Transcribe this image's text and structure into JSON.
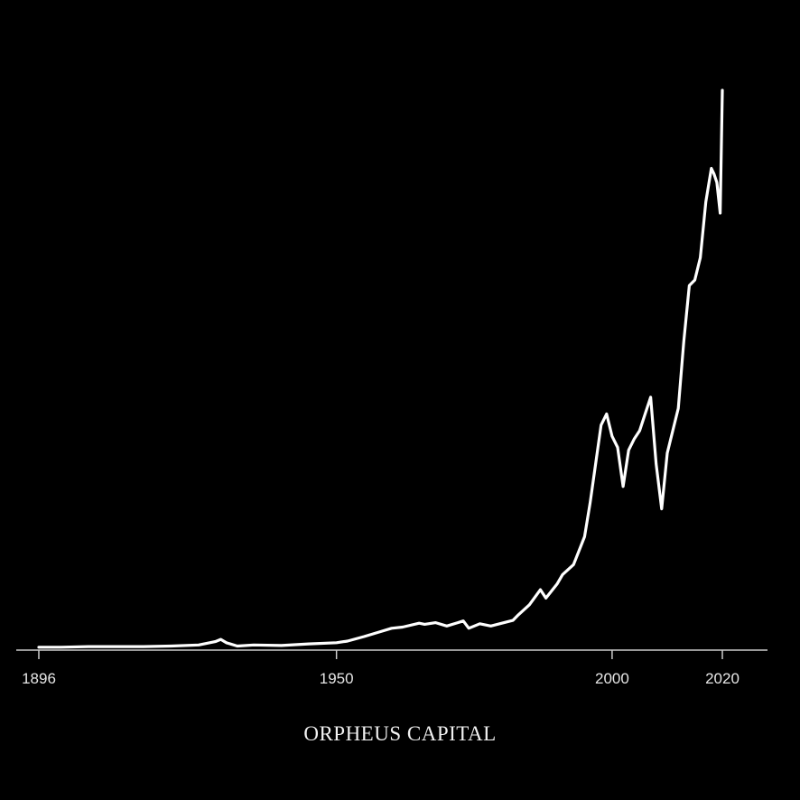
{
  "brand": {
    "name": "ORPHEUS CAPITAL"
  },
  "colors": {
    "background": "#000000",
    "line": "#ffffff",
    "axis": "#cccccc",
    "text": "#e6e6e6"
  },
  "chart_data": {
    "type": "line",
    "title": "",
    "xlabel": "",
    "ylabel": "",
    "xlim": [
      1896,
      2028
    ],
    "ylim": [
      0,
      100
    ],
    "grid": false,
    "y_axis_shown": false,
    "x_ticks": [
      {
        "value": 1896,
        "label": "1896"
      },
      {
        "value": 1950,
        "label": "1950"
      },
      {
        "value": 2000,
        "label": "2000"
      },
      {
        "value": 2020,
        "label": "2020"
      }
    ],
    "series": [
      {
        "x": [
          1896,
          1900,
          1905,
          1910,
          1915,
          1920,
          1925,
          1928,
          1929,
          1930,
          1932,
          1935,
          1940,
          1945,
          1950,
          1952,
          1955,
          1958,
          1960,
          1962,
          1965,
          1966,
          1968,
          1970,
          1972,
          1973,
          1974,
          1976,
          1978,
          1980,
          1982,
          1983,
          1985,
          1987,
          1988,
          1990,
          1991,
          1993,
          1995,
          1996,
          1997,
          1998,
          1999,
          2000,
          2001,
          2002,
          2003,
          2004,
          2005,
          2006,
          2007,
          2008,
          2009,
          2010,
          2011,
          2012,
          2013,
          2014,
          2015,
          2016,
          2017,
          2018,
          2018.5,
          2019,
          2019.6,
          2020
        ],
        "y": [
          0.2,
          0.2,
          0.3,
          0.3,
          0.3,
          0.4,
          0.6,
          1.2,
          1.6,
          1.0,
          0.4,
          0.6,
          0.5,
          0.8,
          1.0,
          1.3,
          2.1,
          3.0,
          3.6,
          3.8,
          4.5,
          4.3,
          4.6,
          4.0,
          4.6,
          4.9,
          3.6,
          4.4,
          4.0,
          4.5,
          5.0,
          6.0,
          7.8,
          10.5,
          9.0,
          11.5,
          13.2,
          15.0,
          20.0,
          26.0,
          33.0,
          40.0,
          42.0,
          38.0,
          36.0,
          29.0,
          35.5,
          37.5,
          39.0,
          42.0,
          45.0,
          33.0,
          25.0,
          35.0,
          39.0,
          43.0,
          55.0,
          65.0,
          66.0,
          70.0,
          80.0,
          86.0,
          85.0,
          83.5,
          78.0,
          100.0
        ]
      }
    ]
  }
}
